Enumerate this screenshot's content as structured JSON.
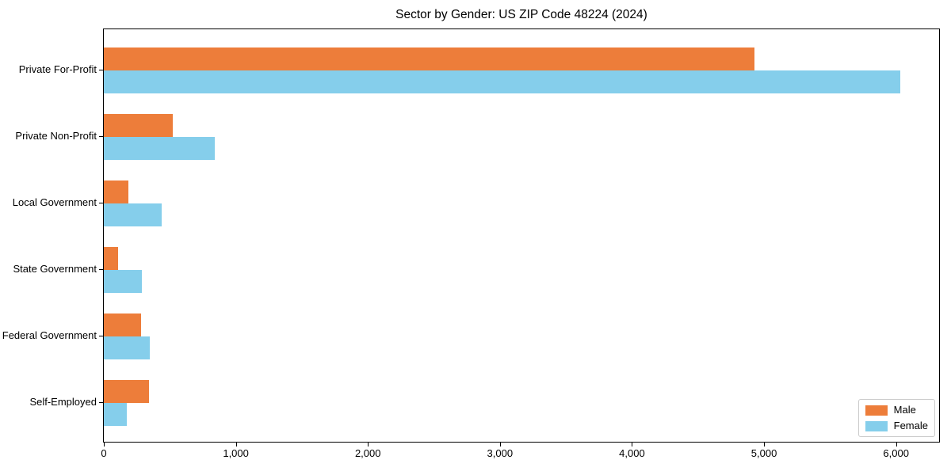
{
  "chart_data": {
    "type": "bar",
    "orientation": "horizontal",
    "title": "Sector by Gender: US ZIP Code 48224 (2024)",
    "categories": [
      "Private For-Profit",
      "Private Non-Profit",
      "Local Government",
      "State Government",
      "Federal Government",
      "Self-Employed"
    ],
    "series": [
      {
        "name": "Male",
        "color": "#ED7D3A",
        "values": [
          4925,
          525,
          185,
          110,
          285,
          340
        ]
      },
      {
        "name": "Female",
        "color": "#85CEEB",
        "values": [
          6030,
          840,
          440,
          290,
          350,
          175
        ]
      }
    ],
    "xlim": [
      0,
      6320
    ],
    "x_ticks": [
      0,
      1000,
      2000,
      3000,
      4000,
      5000,
      6000
    ],
    "x_tick_labels": [
      "0",
      "1,000",
      "2,000",
      "3,000",
      "4,000",
      "5,000",
      "6,000"
    ],
    "xlabel": "",
    "ylabel": "",
    "grid": false,
    "legend": {
      "position": "lower-right",
      "entries": [
        "Male",
        "Female"
      ]
    }
  }
}
